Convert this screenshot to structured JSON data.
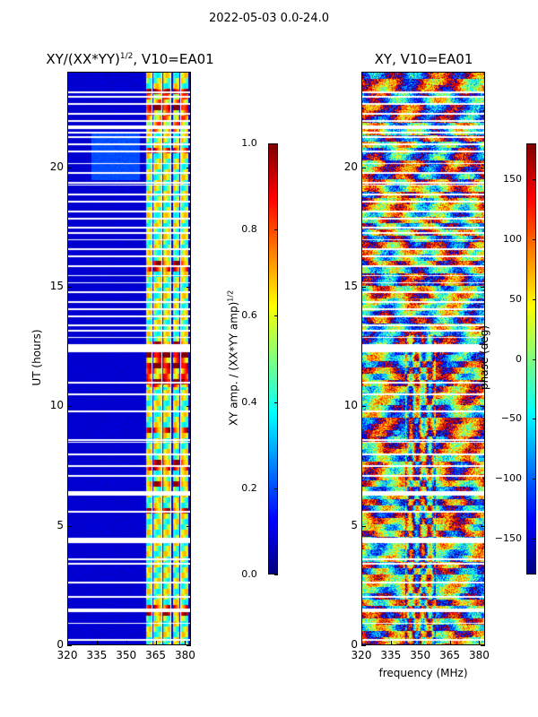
{
  "suptitle": "2022-05-03 0.0-24.0",
  "colors": {
    "background_blue": "#00008f",
    "gap_white": "#ffffff",
    "colormap": "jet"
  },
  "chart_data": [
    {
      "type": "heatmap",
      "title": "XY/(XX*YY)",
      "title_exp": "1/2",
      "title_suffix": ", V10=EA01",
      "xlabel": "",
      "ylabel": "UT (hours)",
      "xlim": [
        320,
        383
      ],
      "ylim": [
        0,
        24
      ],
      "xticks": [
        320,
        335,
        350,
        365,
        380
      ],
      "yticks": [
        0,
        5,
        10,
        15,
        20
      ],
      "colorbar": {
        "label": "XY amp. / (XX*YY amp)",
        "label_exp": "1/2",
        "range": [
          0.0,
          1.0
        ],
        "ticks": [
          "0.0",
          "0.2",
          "0.4",
          "0.6",
          "0.8",
          "1.0"
        ]
      },
      "bright_channels_mhz": [
        [
          360,
          363
        ],
        [
          364,
          368
        ],
        [
          369,
          373
        ],
        [
          374,
          377
        ],
        [
          378,
          382
        ]
      ]
    },
    {
      "type": "heatmap",
      "title": "XY, V10=EA01",
      "xlabel": "frequency (MHz)",
      "ylabel": "",
      "xlim": [
        320,
        383
      ],
      "ylim": [
        0,
        24
      ],
      "xticks": [
        320,
        335,
        350,
        365,
        380
      ],
      "yticks": [
        0,
        5,
        10,
        15,
        20
      ],
      "colorbar": {
        "label": "phase (deg)",
        "range": [
          -180,
          180
        ],
        "ticks": [
          "−150",
          "−100",
          "−50",
          "0",
          "50",
          "100",
          "150"
        ]
      }
    }
  ],
  "flagged_hours": [
    0.2,
    0.9,
    1.4,
    1.45,
    1.5,
    2.0,
    2.6,
    3.4,
    3.6,
    4.3,
    4.35,
    4.4,
    4.45,
    5.6,
    6.3,
    6.35,
    6.4,
    7.1,
    7.5,
    8.0,
    8.5,
    8.6,
    9.8,
    10.5,
    11.0,
    12.3,
    12.35,
    12.4,
    12.45,
    12.5,
    12.55,
    12.6,
    12.9,
    13.2,
    13.4,
    13.8,
    14.1,
    14.4,
    14.8,
    15.2,
    15.5,
    15.9,
    16.3,
    16.6,
    17.0,
    17.3,
    17.5,
    17.9,
    18.2,
    18.6,
    18.9,
    19.3,
    19.4,
    19.8,
    20.2,
    20.7,
    21.0,
    21.3,
    21.5,
    21.7,
    21.75,
    22.0,
    22.3,
    22.7,
    23.0,
    23.2
  ]
}
